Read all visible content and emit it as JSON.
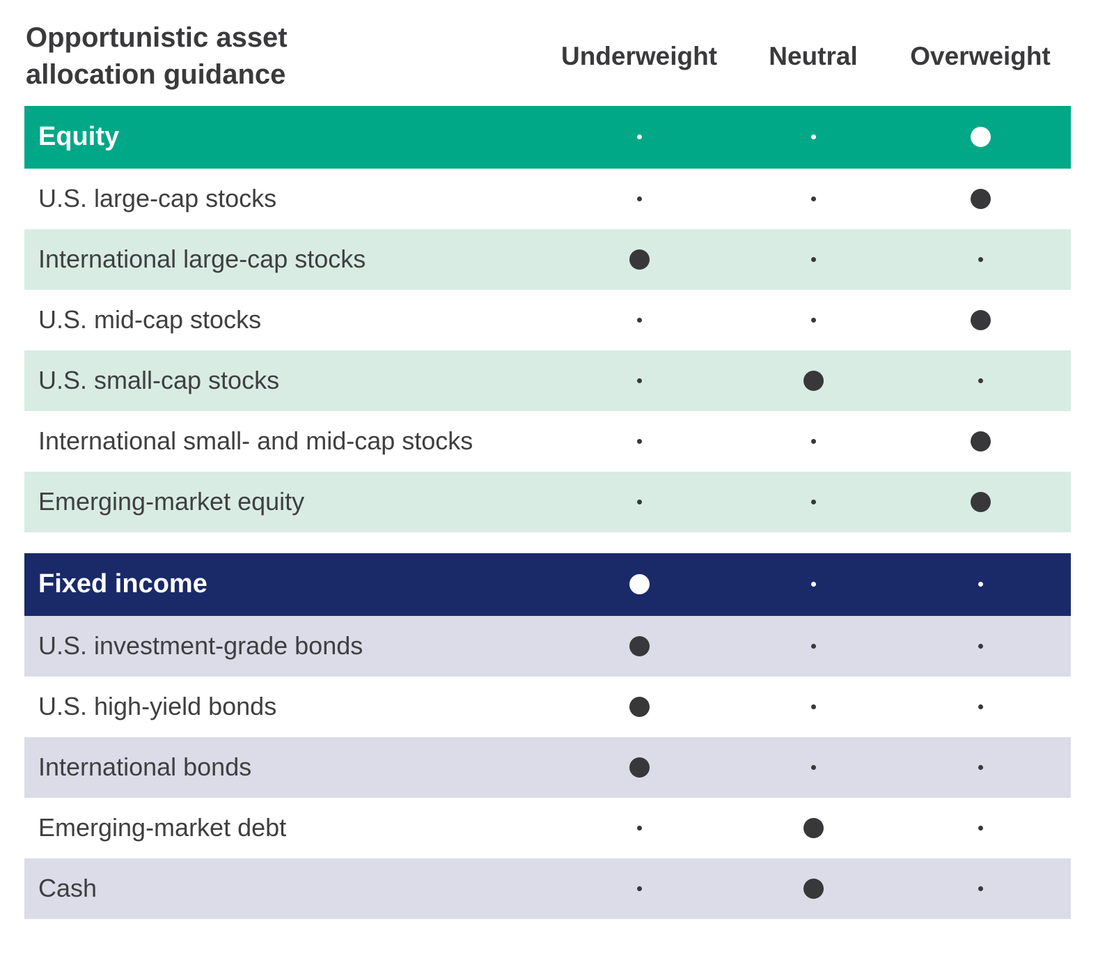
{
  "title": "Opportunistic asset allocation guidance",
  "columns": [
    "Underweight",
    "Neutral",
    "Overweight"
  ],
  "colors": {
    "equity_header_bg": "#00a887",
    "equity_row_tint": "#d8ece4",
    "fixed_income_header_bg": "#1a2a68",
    "fixed_income_row_tint": "#dbdce8",
    "selected_dot_dark": "#38383a",
    "selected_dot_on_header": "#ffffff",
    "text": "#3d3d3f"
  },
  "sections": [
    {
      "label": "Equity",
      "selection": "Overweight",
      "first_row_tinted": false,
      "rows": [
        {
          "label": "U.S. large-cap stocks",
          "selection": "Overweight"
        },
        {
          "label": "International large-cap stocks",
          "selection": "Underweight"
        },
        {
          "label": "U.S. mid-cap stocks",
          "selection": "Overweight"
        },
        {
          "label": "U.S. small-cap stocks",
          "selection": "Neutral"
        },
        {
          "label": "International small- and mid-cap stocks",
          "selection": "Overweight"
        },
        {
          "label": "Emerging-market equity",
          "selection": "Overweight"
        }
      ]
    },
    {
      "label": "Fixed income",
      "selection": "Underweight",
      "first_row_tinted": true,
      "rows": [
        {
          "label": "U.S. investment-grade bonds",
          "selection": "Underweight"
        },
        {
          "label": "U.S. high-yield bonds",
          "selection": "Underweight"
        },
        {
          "label": "International bonds",
          "selection": "Underweight"
        },
        {
          "label": "Emerging-market debt",
          "selection": "Neutral"
        },
        {
          "label": "Cash",
          "selection": "Neutral"
        }
      ]
    }
  ],
  "chart_data": {
    "type": "table",
    "title": "Opportunistic asset allocation guidance",
    "columns": [
      "Underweight",
      "Neutral",
      "Overweight"
    ],
    "rows": [
      {
        "label": "Equity",
        "is_section_header": true,
        "stance": "Overweight"
      },
      {
        "label": "U.S. large-cap stocks",
        "stance": "Overweight"
      },
      {
        "label": "International large-cap stocks",
        "stance": "Underweight"
      },
      {
        "label": "U.S. mid-cap stocks",
        "stance": "Overweight"
      },
      {
        "label": "U.S. small-cap stocks",
        "stance": "Neutral"
      },
      {
        "label": "International small- and mid-cap stocks",
        "stance": "Overweight"
      },
      {
        "label": "Emerging-market equity",
        "stance": "Overweight"
      },
      {
        "label": "Fixed income",
        "is_section_header": true,
        "stance": "Underweight"
      },
      {
        "label": "U.S. investment-grade bonds",
        "stance": "Underweight"
      },
      {
        "label": "U.S. high-yield bonds",
        "stance": "Underweight"
      },
      {
        "label": "International bonds",
        "stance": "Underweight"
      },
      {
        "label": "Emerging-market debt",
        "stance": "Neutral"
      },
      {
        "label": "Cash",
        "stance": "Neutral"
      }
    ],
    "legend": "Large filled dot = current guidance position; small dots = unselected positions",
    "layout": {
      "grid": false,
      "zebra_striping": true
    }
  }
}
